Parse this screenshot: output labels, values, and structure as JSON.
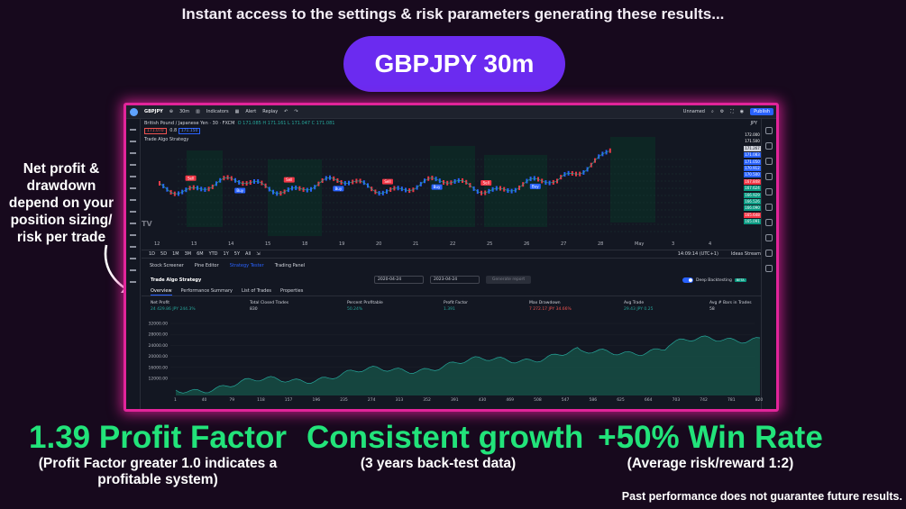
{
  "headline": "Instant access to the settings & risk parameters generating these results...",
  "pill_label": "GBPJPY 30m",
  "side_note": "Net profit & drawdown depend on your position sizing/ risk per trade",
  "tradingview": {
    "top_bar": {
      "symbol": "GBPJPY",
      "interval": "30m",
      "indicators_label": "Indicators",
      "alert_label": "Alert",
      "replay_label": "Replay",
      "layout_label": "Unnamed",
      "publish_label": "Publish"
    },
    "chart": {
      "instrument_title": "British Pound / Japanese Yen · 30 · FXCM",
      "ohlc": "O 171.085  H 171.161  L 171.047  C 171.081",
      "sell_price": "171.070",
      "spread": "0.8",
      "buy_price": "171.150",
      "strategy_legend": "Trade Algo Strategy",
      "currency": "JPY",
      "price_axis": [
        "172.000",
        "171.500",
        "171.267",
        "171.083",
        "171.050",
        "170.912",
        "170.500",
        "167.848",
        "167.624",
        "166.929",
        "166.526",
        "166.090",
        "165.648",
        "165.091"
      ],
      "time_labels": [
        "12",
        "13",
        "14",
        "15",
        "18",
        "19",
        "20",
        "21",
        "22",
        "25",
        "26",
        "27",
        "28",
        "May",
        "3",
        "4"
      ],
      "trade_labels": [
        "Sell",
        "Buy",
        "Sell",
        "Buy",
        "Sell",
        "Buy",
        "Sell",
        "Buy"
      ]
    },
    "range_bar": {
      "ranges": [
        "1D",
        "5D",
        "1M",
        "3M",
        "6M",
        "YTD",
        "1Y",
        "5Y",
        "All"
      ],
      "clock": "14:09:14 (UTC+1)",
      "ideas_stream": "Ideas Stream"
    },
    "panel_tabs": [
      "Stock Screener",
      "Pine Editor",
      "Strategy Tester",
      "Trading Panel"
    ],
    "strategy": {
      "name": "Trade Algo Strategy",
      "date_from": "2020-04-24",
      "date_to": "2023-04-24",
      "export_label": "Generate report",
      "deep_backtesting": "Deep Backtesting",
      "beta": "BETA"
    },
    "sub_tabs": [
      "Overview",
      "Performance Summary",
      "List of Trades",
      "Properties"
    ],
    "metrics": [
      {
        "label": "Net Profit",
        "value": "24 429.86 JPY  244.3%",
        "tone": "pos"
      },
      {
        "label": "Total Closed Trades",
        "value": "830",
        "tone": "plain"
      },
      {
        "label": "Percent Profitable",
        "value": "50.24%",
        "tone": "pos"
      },
      {
        "label": "Profit Factor",
        "value": "1.391",
        "tone": "pos"
      },
      {
        "label": "Max Drawdown",
        "value": "7 272.17 JPY  34.66%",
        "tone": "neg"
      },
      {
        "label": "Avg Trade",
        "value": "29.43 JPY  0.25",
        "tone": "pos"
      },
      {
        "label": "Avg # Bars in Trades",
        "value": "58",
        "tone": "plain"
      }
    ],
    "equity": {
      "y_ticks": [
        "32000.00",
        "28000.00",
        "24000.00",
        "20000.00",
        "16000.00",
        "12000.00"
      ],
      "x_ticks": [
        "1",
        "40",
        "79",
        "118",
        "157",
        "196",
        "235",
        "274",
        "313",
        "352",
        "391",
        "430",
        "469",
        "508",
        "547",
        "586",
        "625",
        "664",
        "703",
        "742",
        "781",
        "820"
      ]
    }
  },
  "claims": [
    {
      "big": "1.39 Profit Factor",
      "small": "(Profit Factor greater 1.0 indicates a profitable system)"
    },
    {
      "big": "Consistent growth",
      "small": "(3 years back-test data)"
    },
    {
      "big": "+50% Win Rate",
      "small": "(Average risk/reward 1:2)"
    }
  ],
  "disclaimer": "Past performance does not guarantee future results.",
  "colors": {
    "pill": "#6b2bf0",
    "frame_glow": "#e2249a",
    "claim_green": "#22e37a",
    "background": "#17091d"
  }
}
